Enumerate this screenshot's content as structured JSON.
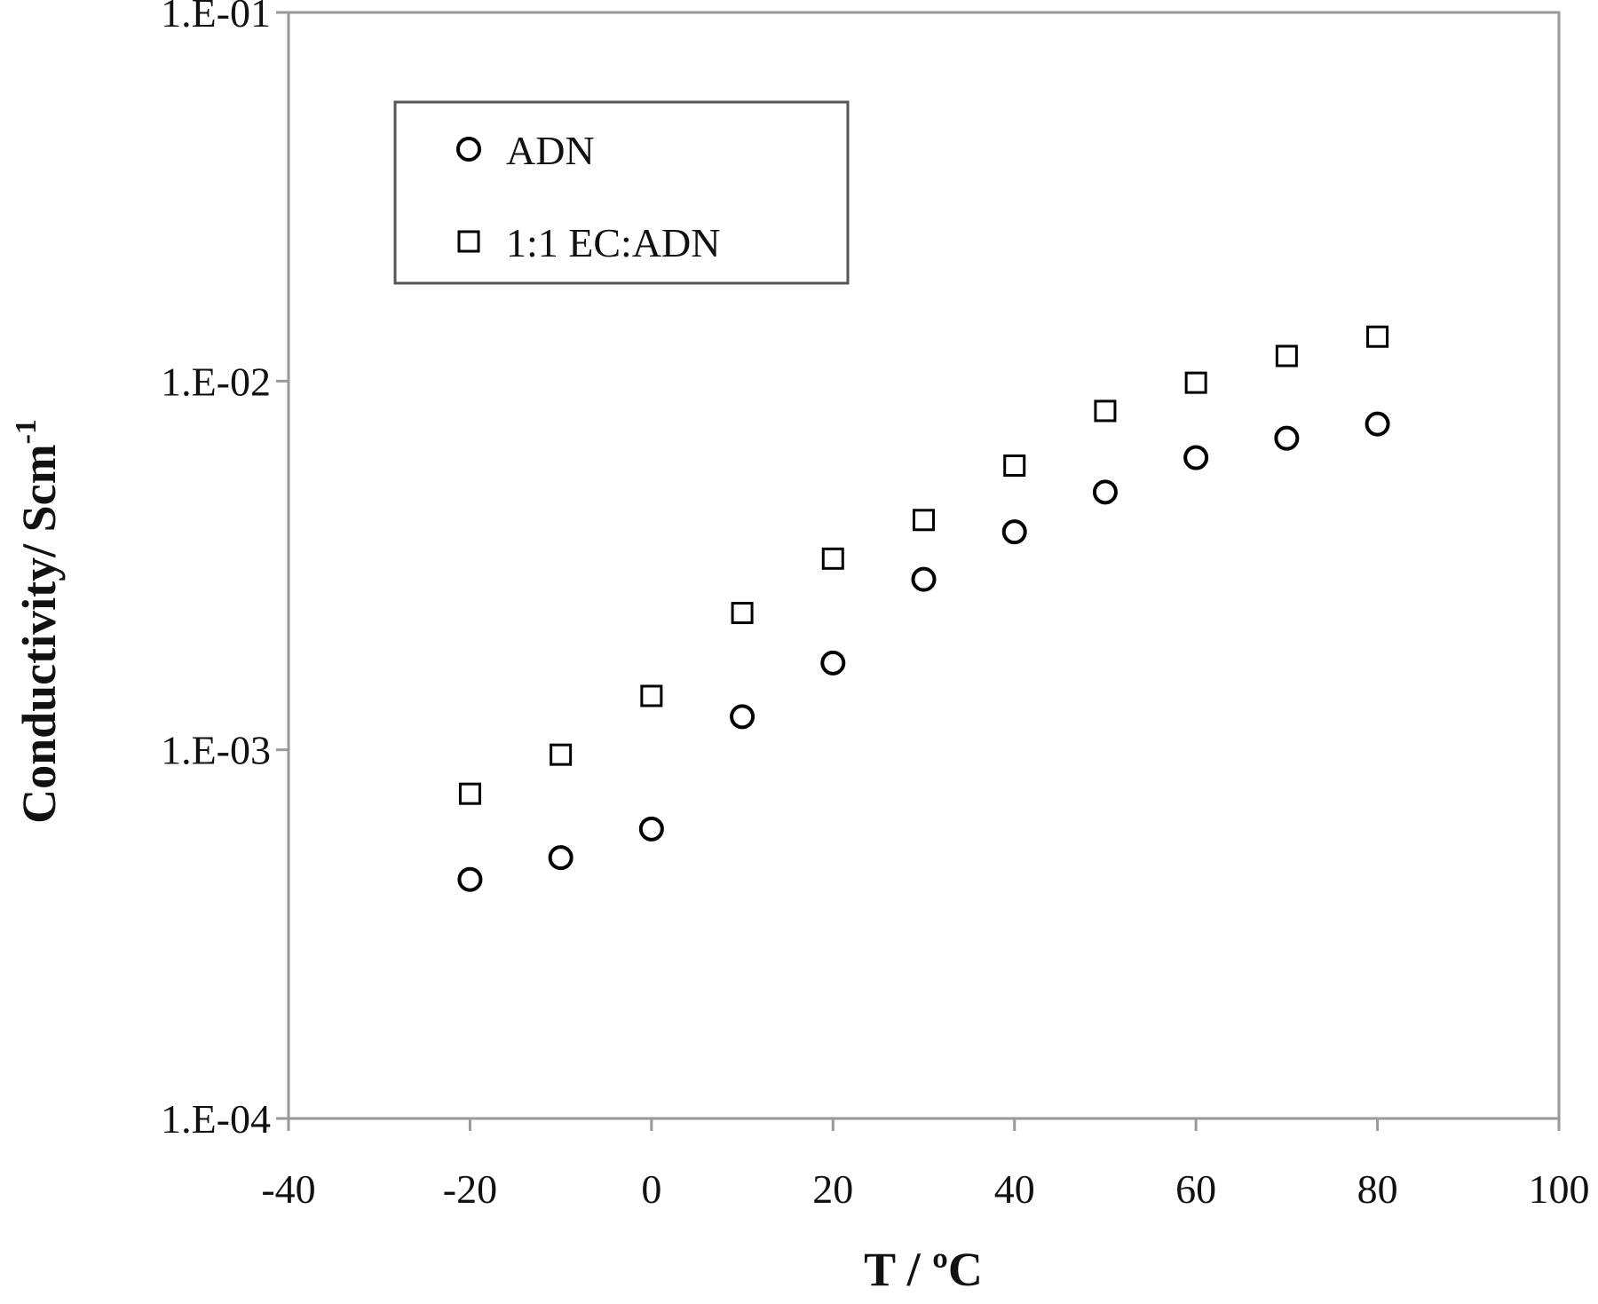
{
  "chart_data": {
    "type": "scatter",
    "xlabel": "T / ºC",
    "ylabel": {
      "text": "Conductivity/ Scm",
      "superscript": "-1"
    },
    "x": [
      -20,
      -10,
      0,
      10,
      20,
      30,
      40,
      50,
      60,
      70,
      80
    ],
    "series": [
      {
        "name": "ADN",
        "marker": "circle",
        "color": "#000000",
        "values": [
          0.000445,
          0.00051,
          0.00061,
          0.00123,
          0.00172,
          0.0029,
          0.0039,
          0.005,
          0.0062,
          0.007,
          0.00765
        ]
      },
      {
        "name": "1:1 EC:ADN",
        "marker": "square",
        "color": "#000000",
        "values": [
          0.00076,
          0.00097,
          0.0014,
          0.00235,
          0.0033,
          0.0042,
          0.0059,
          0.0083,
          0.0099,
          0.0117,
          0.0132
        ]
      }
    ],
    "xlim": [
      -40,
      100
    ],
    "xticks": [
      -40,
      -20,
      0,
      20,
      40,
      60,
      80,
      100
    ],
    "ylim": [
      0.0001,
      0.1
    ],
    "ylog": true,
    "yticks": [
      {
        "value": 0.0001,
        "label": "1.E-04"
      },
      {
        "value": 0.001,
        "label": "1.E-03"
      },
      {
        "value": 0.01,
        "label": "1.E-02"
      },
      {
        "value": 0.1,
        "label": "1.E-01"
      }
    ],
    "legend": "upper left"
  }
}
